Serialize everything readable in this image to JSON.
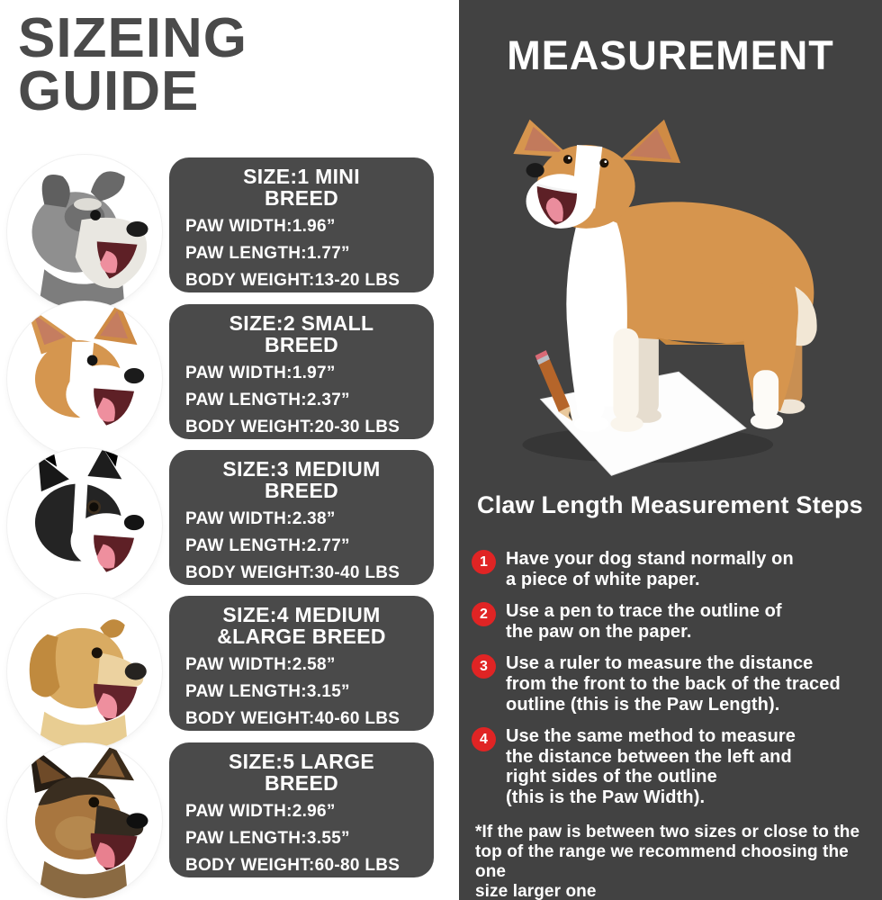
{
  "left": {
    "title_lines": [
      "SIZEING",
      "GUIDE"
    ],
    "sizes": [
      {
        "title_lines": [
          "SIZE:1 MINI",
          "BREED"
        ],
        "paw_width": "PAW WIDTH:1.96”",
        "paw_length": "PAW LENGTH:1.77”",
        "body_weight": "BODY WEIGHT:13-20 LBS",
        "breed": "SCHNAUZER",
        "photo": "schnauzer-head-photo"
      },
      {
        "title_lines": [
          "SIZE:2 SMALL",
          "BREED"
        ],
        "paw_width": "PAW WIDTH:1.97”",
        "paw_length": "PAW LENGTH:2.37”",
        "body_weight": "BODY WEIGHT:20-30 LBS",
        "breed": "CORGI",
        "photo": "corgi-head-photo"
      },
      {
        "title_lines": [
          "SIZE:3 MEDIUM",
          "BREED"
        ],
        "paw_width": "PAW WIDTH:2.38”",
        "paw_length": "PAW LENGTH:2.77”",
        "body_weight": "BODY WEIGHT:30-40 LBS",
        "breed": "BORDER COLLIE",
        "photo": "border-collie-head-photo"
      },
      {
        "title_lines": [
          "SIZE:4 MEDIUM",
          "&LARGE BREED"
        ],
        "paw_width": "PAW WIDTH:2.58”",
        "paw_length": "PAW LENGTH:3.15”",
        "body_weight": "BODY WEIGHT:40-60 LBS",
        "breed": "GOLDEN BETRIEVER",
        "photo": "golden-retriever-head-photo"
      },
      {
        "title_lines": [
          "SIZE:5 LARGE",
          "BREED"
        ],
        "paw_width": "PAW WIDTH:2.96”",
        "paw_length": "PAW LENGTH:3.55”",
        "body_weight": "BODY WEIGHT:60-80 LBS",
        "breed": "GREMAN SHEPHERD",
        "photo": "german-shepherd-head-photo"
      }
    ]
  },
  "right": {
    "title": "MEASUREMENT",
    "photo": "corgi-standing-on-paper-with-pencil-photo",
    "steps_heading": "Claw Length Measurement Steps",
    "steps": [
      {
        "num": "1",
        "lines": [
          "Have your dog stand normally on",
          "a piece of white paper."
        ]
      },
      {
        "num": "2",
        "lines": [
          "Use a pen to trace the outline of",
          "the paw on the paper."
        ]
      },
      {
        "num": "3",
        "lines": [
          "Use a ruler to measure the distance",
          "from the front to the back of the traced",
          "outline (this is the Paw Length)."
        ]
      },
      {
        "num": "4",
        "lines": [
          "Use the same method to measure",
          "the distance between the left and",
          "right sides of the outline",
          "(this is the Paw Width)."
        ]
      }
    ],
    "footnote_lines": [
      "*If the paw is between two sizes or close to the",
      "top of the range  we recommend choosing the one",
      "size larger one"
    ]
  },
  "colors": {
    "panel_bg": "#424242",
    "card_bg": "#4a4a4a",
    "title_gray": "#4a4a4a",
    "step_badge_red": "#e02424",
    "text_white": "#ffffff"
  }
}
